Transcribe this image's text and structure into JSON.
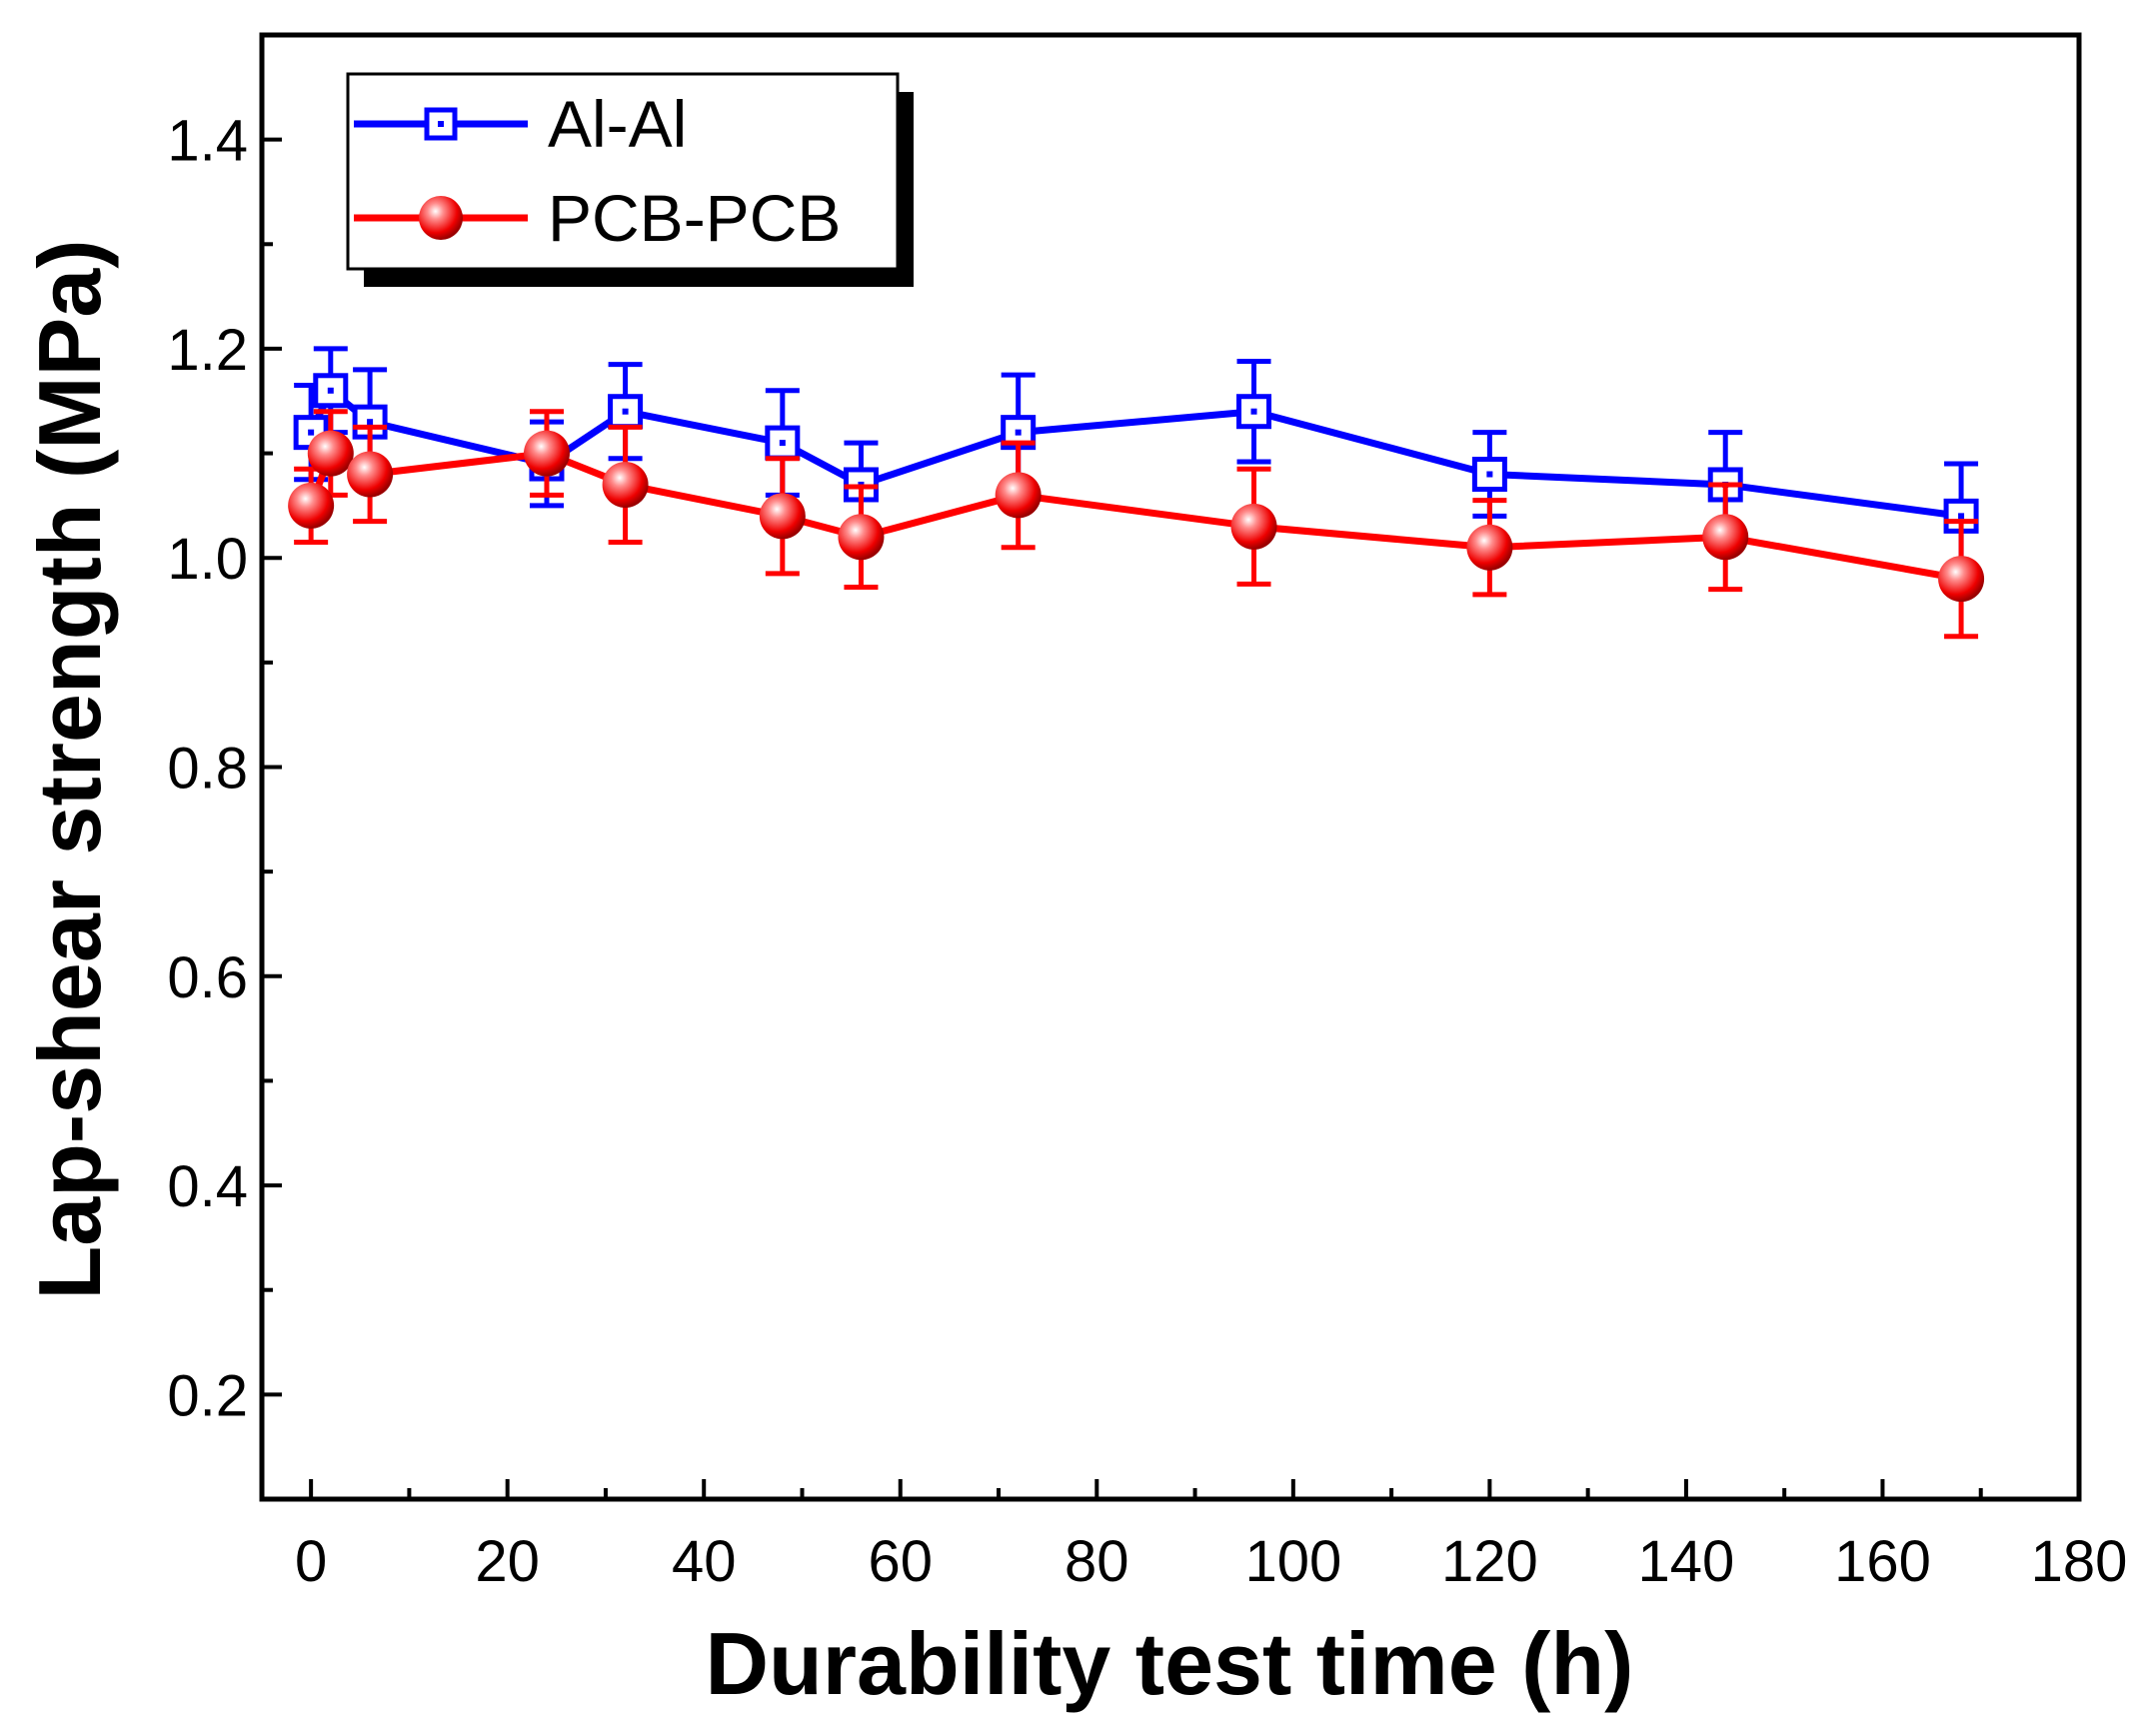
{
  "chart_data": {
    "type": "line",
    "title": "",
    "xlabel": "Durability test time (h)",
    "ylabel": "Lap-shear strength (MPa)",
    "xlim": [
      -5,
      180
    ],
    "ylim": [
      0.1,
      1.5
    ],
    "x_ticks": [
      0,
      20,
      40,
      60,
      80,
      100,
      120,
      140,
      160,
      180
    ],
    "y_ticks": [
      0.2,
      0.4,
      0.6,
      0.8,
      1.0,
      1.2,
      1.4
    ],
    "x_tick_labels": [
      "0",
      "20",
      "40",
      "60",
      "80",
      "100",
      "120",
      "140",
      "160",
      "180"
    ],
    "y_tick_labels": [
      "0.2",
      "0.4",
      "0.6",
      "0.8",
      "1.0",
      "1.2",
      "1.4"
    ],
    "grid": false,
    "legend_position": "top-left",
    "series": [
      {
        "name": "Al-Al",
        "color": "#0000ff",
        "marker": "open-square",
        "x": [
          0,
          2,
          6,
          24,
          32,
          48,
          56,
          72,
          96,
          120,
          144,
          168
        ],
        "y": [
          1.12,
          1.16,
          1.13,
          1.09,
          1.14,
          1.11,
          1.07,
          1.12,
          1.14,
          1.08,
          1.07,
          1.04
        ],
        "error": [
          0.045,
          0.04,
          0.05,
          0.04,
          0.045,
          0.05,
          0.04,
          0.055,
          0.048,
          0.04,
          0.05,
          0.05
        ]
      },
      {
        "name": "PCB-PCB",
        "color": "#ff0000",
        "marker": "filled-sphere",
        "x": [
          0,
          2,
          6,
          24,
          32,
          48,
          56,
          72,
          96,
          120,
          144,
          168
        ],
        "y": [
          1.05,
          1.1,
          1.08,
          1.1,
          1.07,
          1.04,
          1.02,
          1.06,
          1.03,
          1.01,
          1.02,
          0.98
        ],
        "error": [
          0.035,
          0.04,
          0.045,
          0.04,
          0.055,
          0.055,
          0.048,
          0.05,
          0.055,
          0.045,
          0.05,
          0.055
        ]
      }
    ]
  }
}
